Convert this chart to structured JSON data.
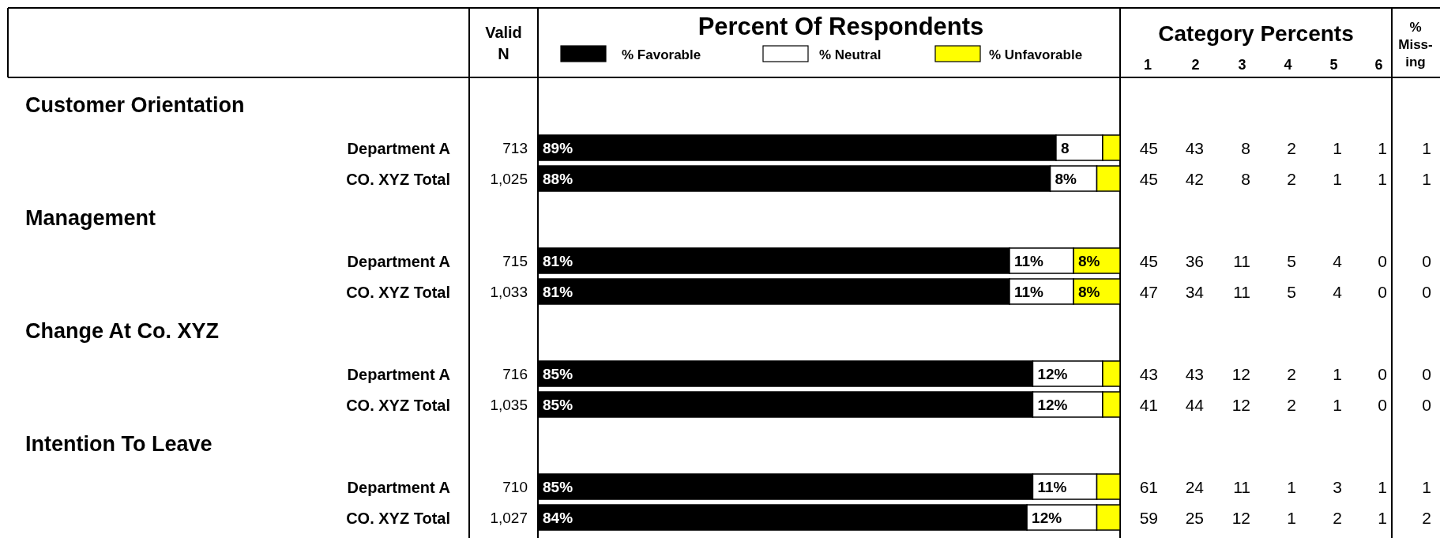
{
  "chart_data": {
    "type": "bar",
    "orientation": "horizontal",
    "stacked": true,
    "title": "Percent Of Respondents",
    "legend": "top",
    "tick_labels": "y",
    "xlim": [
      0,
      100
    ],
    "categories": [
      null,
      "Department A",
      "CO. XYZ Total",
      null,
      "Department A",
      "CO. XYZ Total",
      null,
      "Department A",
      "CO. XYZ Total",
      null,
      "Department A",
      "CO. XYZ Total"
    ],
    "series": [
      {
        "name": "% Favorable",
        "color": "#000000",
        "values": [
          null,
          89,
          88,
          null,
          81,
          81,
          null,
          85,
          85,
          null,
          85,
          84
        ],
        "value_labels": [
          null,
          "89%",
          "88%",
          null,
          "81%",
          "81%",
          null,
          "85%",
          "85%",
          null,
          "85%",
          "84%"
        ]
      },
      {
        "name": "% Neutral",
        "color": "#ffffff",
        "values": [
          null,
          8,
          8,
          null,
          11,
          11,
          null,
          12,
          12,
          null,
          11,
          12
        ],
        "value_labels": [
          null,
          "8",
          "8%",
          null,
          "11%",
          "11%",
          null,
          "12%",
          "12%",
          null,
          "11%",
          "12%"
        ]
      },
      {
        "name": "% Unfavorable",
        "color": "#ffff00",
        "values": [
          null,
          3,
          4,
          null,
          8,
          8,
          null,
          3,
          3,
          null,
          4,
          4
        ],
        "value_labels": [
          null,
          null,
          null,
          null,
          "8%",
          "8%",
          null,
          null,
          null,
          null,
          null,
          null
        ]
      }
    ],
    "annotations": [
      "Valid N",
      "Category Percents",
      "1 2 3 4 5 6",
      "% Miss-ing",
      "Customer Orientation",
      "Management",
      "Change At Co. XYZ",
      "Intention To Leave",
      "713",
      "45 43 8 2 1 1",
      "1",
      "1,025",
      "45 42 8 2 1 1",
      "1",
      "715",
      "45 36 11 5 4 0",
      "0",
      "1,033",
      "47 34 11 5 4 0",
      "0",
      "716",
      "43 43 12 2 1 0",
      "0",
      "1,035",
      "41 44 12 2 1 0",
      "0",
      "710",
      "61 24 11 1 3 1",
      "1",
      "1,027",
      "59 25 12 1 2 1",
      "2"
    ]
  }
}
